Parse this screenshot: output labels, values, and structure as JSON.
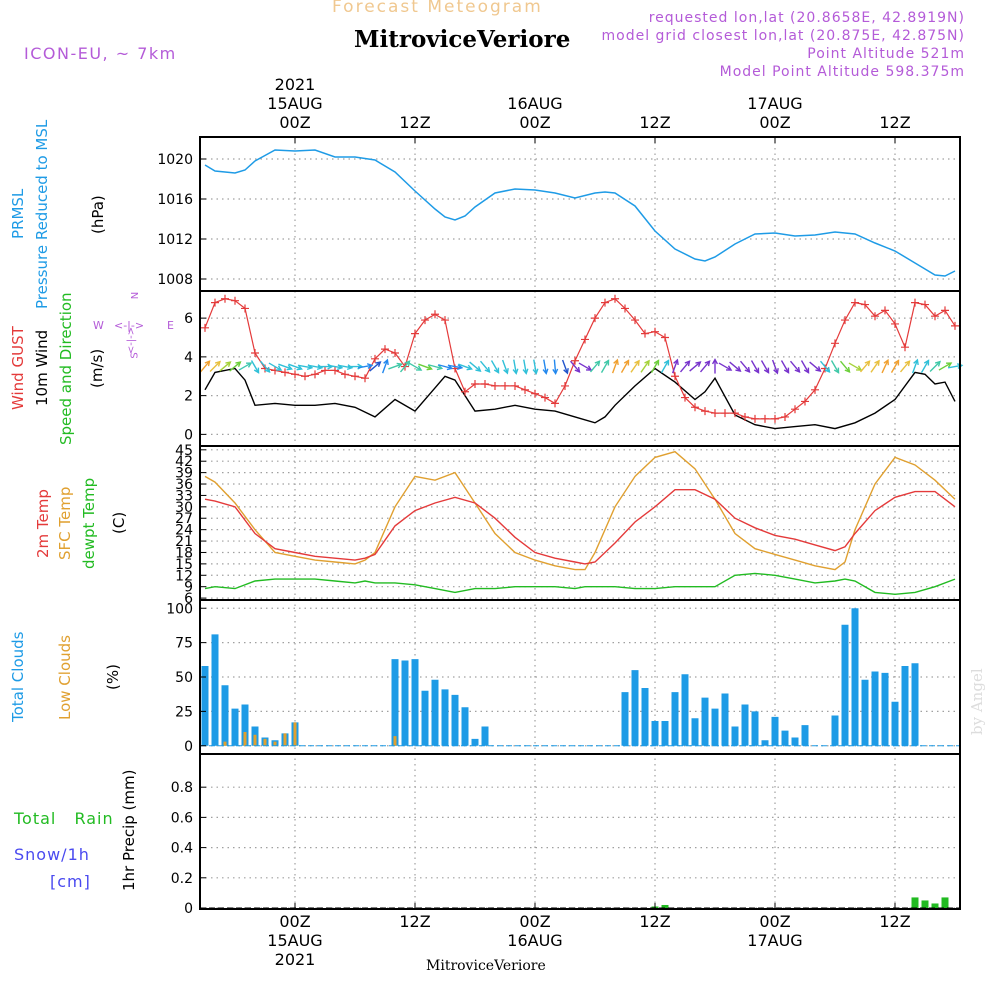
{
  "header": {
    "subtitle": "Forecast Meteogram",
    "title": "MitroviceVeriore",
    "model": "ICON-EU, ~ 7km",
    "requested": "requested lon,lat (20.8658E, 42.8919N)",
    "closest": "model grid closest lon,lat (20.875E, 42.875N)",
    "point_altitude": "Point Altitude 521m",
    "model_altitude": "Model Point Altitude 598.375m",
    "credit": "by Angel",
    "footer_station": "MitroviceVeriore"
  },
  "time_axis": {
    "year": "2021",
    "labels": [
      {
        "hour": 0,
        "time": "00Z",
        "date": "15AUG"
      },
      {
        "hour": 12,
        "time": "12Z",
        "date": ""
      },
      {
        "hour": 24,
        "time": "00Z",
        "date": "16AUG"
      },
      {
        "hour": 36,
        "time": "12Z",
        "date": ""
      },
      {
        "hour": 48,
        "time": "00Z",
        "date": "17AUG"
      },
      {
        "hour": 60,
        "time": "12Z",
        "date": ""
      }
    ]
  },
  "panels": {
    "pressure": {
      "labels": [
        {
          "text": "PRMSL",
          "color": "#1e9be6"
        },
        {
          "text": "Pressure Reduced to MSL",
          "color": "#1e9be6"
        },
        {
          "text": "(hPa)",
          "color": "#000000"
        }
      ],
      "ticks": [
        "1008",
        "1012",
        "1016",
        "1020"
      ]
    },
    "wind": {
      "labels": [
        {
          "text": "Wind GUST",
          "color": "#e43a3a"
        },
        {
          "text": "10m Wind",
          "color": "#000000"
        },
        {
          "text": "Speed and Direction",
          "color": "#22bb22"
        },
        {
          "text": "(m/s)",
          "color": "#000000"
        }
      ],
      "compass": {
        "n": "N",
        "s": "S",
        "w": "W",
        "e": "E",
        "arrow_h": "<-|->",
        "color": "#b45bd8"
      },
      "ticks": [
        "0",
        "2",
        "4",
        "6"
      ]
    },
    "temperature": {
      "labels": [
        {
          "text": "2m Temp",
          "color": "#e43a3a"
        },
        {
          "text": "SFC Temp",
          "color": "#e0a030"
        },
        {
          "text": "dewpt Temp",
          "color": "#22bb22"
        },
        {
          "text": "(C)",
          "color": "#000000"
        }
      ],
      "ticks": [
        "6",
        "9",
        "12",
        "15",
        "18",
        "21",
        "24",
        "27",
        "30",
        "33",
        "36",
        "39",
        "42",
        "45"
      ]
    },
    "clouds": {
      "labels": [
        {
          "text": "Total Clouds",
          "color": "#1e9be6"
        },
        {
          "text": "Low Clouds",
          "color": "#e0a030"
        },
        {
          "text": "(%)",
          "color": "#000000"
        }
      ],
      "ticks": [
        "0",
        "25",
        "50",
        "75",
        "100"
      ]
    },
    "precip": {
      "labels": [
        {
          "text": "1hr Precip (mm)",
          "color": "#000000"
        }
      ],
      "legend": {
        "rain": "Total Rain",
        "snow": "Snow/1h",
        "unit": "[cm]"
      },
      "ticks": [
        "0",
        "0.2",
        "0.4",
        "0.6",
        "0.8"
      ]
    }
  },
  "chart_data": {
    "type": "line",
    "x_unit": "hours from 2021-08-15 00Z",
    "x_range": [
      -9.5,
      66.5
    ],
    "pressure": {
      "ylim": [
        1006.8,
        1022.2
      ],
      "x": [
        -9,
        -8,
        -6,
        -5,
        -4,
        -2,
        0,
        2,
        4,
        6,
        8,
        10,
        12,
        14,
        15,
        16,
        17,
        18,
        20,
        22,
        24,
        26,
        28,
        30,
        31,
        32,
        34,
        36,
        38,
        40,
        41,
        42,
        44,
        46,
        48,
        50,
        52,
        54,
        56,
        58,
        60,
        62,
        63,
        64,
        65,
        66
      ],
      "values": [
        1019.4,
        1018.8,
        1018.6,
        1018.9,
        1019.8,
        1020.9,
        1020.8,
        1020.9,
        1020.2,
        1020.2,
        1019.9,
        1018.7,
        1016.8,
        1015.0,
        1014.2,
        1013.9,
        1014.3,
        1015.2,
        1016.6,
        1017.0,
        1016.9,
        1016.6,
        1016.1,
        1016.6,
        1016.7,
        1016.6,
        1015.3,
        1012.8,
        1011.0,
        1010.0,
        1009.8,
        1010.2,
        1011.5,
        1012.5,
        1012.6,
        1012.3,
        1012.4,
        1012.7,
        1012.5,
        1011.6,
        1010.8,
        1009.6,
        1009.0,
        1008.4,
        1008.3,
        1008.8
      ]
    },
    "wind_gust": {
      "ylim": [
        -0.6,
        7.4
      ],
      "x": [
        -9,
        -8,
        -7,
        -6,
        -5,
        -4,
        -3,
        -2,
        -1,
        0,
        1,
        2,
        3,
        4,
        5,
        6,
        7,
        8,
        9,
        10,
        11,
        12,
        13,
        14,
        15,
        16,
        17,
        18,
        19,
        20,
        21,
        22,
        23,
        24,
        25,
        26,
        27,
        28,
        29,
        30,
        31,
        32,
        33,
        34,
        35,
        36,
        37,
        38,
        39,
        40,
        41,
        42,
        43,
        44,
        45,
        46,
        47,
        48,
        49,
        50,
        51,
        52,
        53,
        54,
        55,
        56,
        57,
        58,
        59,
        60,
        61,
        62,
        63,
        64,
        65,
        66
      ],
      "values": [
        5.5,
        6.8,
        7.0,
        6.9,
        6.5,
        4.2,
        3.4,
        3.3,
        3.2,
        3.1,
        3.0,
        3.1,
        3.3,
        3.3,
        3.1,
        3.0,
        2.9,
        3.9,
        4.4,
        4.2,
        3.5,
        5.2,
        5.9,
        6.2,
        5.9,
        3.4,
        2.2,
        2.6,
        2.6,
        2.5,
        2.5,
        2.5,
        2.3,
        2.1,
        1.9,
        1.6,
        2.5,
        3.8,
        4.9,
        6.0,
        6.8,
        7.0,
        6.5,
        5.9,
        5.2,
        5.3,
        5.0,
        3.0,
        1.9,
        1.4,
        1.2,
        1.1,
        1.1,
        1.1,
        0.9,
        0.8,
        0.8,
        0.8,
        0.9,
        1.3,
        1.7,
        2.3,
        3.4,
        4.7,
        5.9,
        6.8,
        6.7,
        6.1,
        6.4,
        5.7,
        4.5,
        6.8,
        6.7,
        6.1,
        6.4,
        5.6
      ]
    },
    "wind_10m": {
      "x": [
        -9,
        -8,
        -6,
        -5,
        -4,
        -2,
        0,
        2,
        4,
        6,
        8,
        10,
        12,
        14,
        15,
        16,
        17,
        18,
        20,
        22,
        24,
        26,
        28,
        30,
        31,
        32,
        34,
        36,
        38,
        40,
        41,
        42,
        44,
        46,
        48,
        50,
        52,
        54,
        56,
        58,
        60,
        62,
        63,
        64,
        65,
        66
      ],
      "values": [
        2.3,
        3.2,
        3.4,
        2.8,
        1.5,
        1.6,
        1.5,
        1.5,
        1.6,
        1.4,
        0.9,
        1.8,
        1.2,
        2.4,
        3.0,
        2.8,
        2.0,
        1.2,
        1.3,
        1.5,
        1.3,
        1.2,
        0.9,
        0.6,
        0.9,
        1.5,
        2.5,
        3.4,
        2.7,
        1.8,
        2.2,
        2.9,
        1.0,
        0.5,
        0.3,
        0.4,
        0.5,
        0.3,
        0.6,
        1.1,
        1.8,
        3.2,
        3.1,
        2.6,
        2.7,
        1.7
      ]
    },
    "wind_arrows": {
      "x": [
        -9,
        -8,
        -7,
        -6,
        -5,
        -4,
        -3,
        -2,
        -1,
        0,
        1,
        2,
        3,
        4,
        5,
        6,
        7,
        8,
        9,
        10,
        11,
        12,
        13,
        14,
        15,
        16,
        17,
        18,
        19,
        20,
        21,
        22,
        23,
        24,
        25,
        26,
        27,
        28,
        29,
        30,
        31,
        32,
        33,
        34,
        35,
        36,
        37,
        38,
        39,
        40,
        41,
        42,
        43,
        44,
        45,
        46,
        47,
        48,
        49,
        50,
        51,
        52,
        53,
        54,
        55,
        56,
        57,
        58,
        59,
        60,
        61,
        62,
        63,
        64,
        65,
        66
      ],
      "direction_deg": [
        220,
        225,
        230,
        230,
        240,
        330,
        320,
        300,
        290,
        290,
        280,
        280,
        270,
        280,
        280,
        270,
        260,
        230,
        200,
        250,
        220,
        300,
        290,
        285,
        285,
        280,
        290,
        310,
        320,
        330,
        340,
        350,
        350,
        350,
        350,
        355,
        340,
        320,
        300,
        220,
        210,
        200,
        210,
        215,
        215,
        210,
        210,
        200,
        220,
        230,
        220,
        180,
        300,
        310,
        320,
        330,
        330,
        340,
        330,
        320,
        330,
        310,
        320,
        330,
        320,
        300,
        220,
        215,
        205,
        210,
        220,
        200,
        210,
        225,
        240,
        260
      ],
      "colors": [
        "#f0a030",
        "#e8c040",
        "#a6d23a",
        "#6ccf3a",
        "#40c8b0",
        "#30c0d8",
        "#30c0d8",
        "#30c0d8",
        "#30c0d8",
        "#30c0d8",
        "#30c0d8",
        "#30c0d8",
        "#30c0d8",
        "#30c0d8",
        "#30c0d8",
        "#30c0d8",
        "#2288ee",
        "#2255cc",
        "#2288ee",
        "#40c8a8",
        "#40c8a8",
        "#40c8a8",
        "#6ccf3a",
        "#40c8a8",
        "#2288ee",
        "#2288ee",
        "#30c0d8",
        "#30c0d8",
        "#30c0d8",
        "#30c0d8",
        "#30c0d8",
        "#30c0d8",
        "#30c0d8",
        "#30c0d8",
        "#2288ee",
        "#2288ee",
        "#2255cc",
        "#7733cc",
        "#7733cc",
        "#40c8a8",
        "#40c8a8",
        "#f0a030",
        "#f0a030",
        "#e8c040",
        "#a6d23a",
        "#6ccf3a",
        "#30c0d8",
        "#7733cc",
        "#7733cc",
        "#7733cc",
        "#7733cc",
        "#7733cc",
        "#7733cc",
        "#7733cc",
        "#7733cc",
        "#7733cc",
        "#7733cc",
        "#7733cc",
        "#7733cc",
        "#7733cc",
        "#7733cc",
        "#7733cc",
        "#30c0d8",
        "#40c8a8",
        "#6ccf3a",
        "#a6d23a",
        "#e8c040",
        "#e8c040",
        "#f0a030",
        "#f0a030",
        "#e8c040",
        "#30c0d8",
        "#30c0d8",
        "#40c8a8",
        "#6ccf3a",
        "#30c0d8"
      ]
    },
    "temperature": {
      "ylim": [
        5.5,
        46
      ],
      "x": [
        -9,
        -8,
        -6,
        -4,
        -2,
        0,
        2,
        4,
        6,
        7,
        8,
        10,
        12,
        14,
        16,
        18,
        20,
        22,
        24,
        26,
        28,
        29,
        30,
        32,
        34,
        36,
        38,
        40,
        42,
        44,
        46,
        48,
        50,
        52,
        54,
        55,
        56,
        58,
        60,
        62,
        64,
        66
      ],
      "t2m": [
        32,
        31.5,
        30,
        23,
        19,
        18,
        17,
        16.5,
        16,
        16.5,
        17.5,
        25,
        29,
        31,
        32.5,
        31,
        27,
        22,
        18,
        16.5,
        15.5,
        15,
        15.5,
        20.5,
        26,
        30,
        34.5,
        34.5,
        32,
        27,
        24.5,
        22.5,
        21.5,
        20,
        18.5,
        19.5,
        23,
        29,
        32.5,
        34,
        34,
        30
      ],
      "sfc": [
        38,
        36.5,
        31,
        24,
        18,
        17,
        16,
        15.5,
        15,
        16,
        18,
        30,
        38,
        37,
        39,
        31,
        23,
        18,
        16,
        14.5,
        13.5,
        13.5,
        18,
        30,
        38,
        43,
        44.5,
        40,
        32,
        23,
        19,
        17.5,
        16,
        14.5,
        13.5,
        15.5,
        24,
        36,
        43,
        41,
        37,
        32
      ],
      "dewpt": [
        8.5,
        9,
        8.5,
        10.5,
        11,
        11,
        11,
        10.5,
        10,
        10.5,
        10,
        10,
        9.5,
        8.5,
        7.5,
        8.5,
        8.5,
        9,
        9,
        9,
        8.5,
        9,
        9,
        9,
        8.5,
        8.5,
        9,
        9,
        9,
        12,
        12.5,
        12,
        11,
        10,
        10.5,
        11,
        10.5,
        7.5,
        7,
        7.5,
        9,
        11
      ]
    },
    "clouds": {
      "ylim": [
        -6,
        106
      ],
      "x": [
        -9,
        -8,
        -7,
        -6,
        -5,
        -4,
        -3,
        -2,
        -1,
        0,
        1,
        2,
        3,
        4,
        5,
        6,
        7,
        8,
        9,
        10,
        11,
        12,
        13,
        14,
        15,
        16,
        17,
        18,
        19,
        20,
        21,
        22,
        23,
        24,
        25,
        26,
        27,
        28,
        29,
        30,
        31,
        32,
        33,
        34,
        35,
        36,
        37,
        38,
        39,
        40,
        41,
        42,
        43,
        44,
        45,
        46,
        47,
        48,
        49,
        50,
        51,
        52,
        53,
        54,
        55,
        56,
        57,
        58,
        59,
        60,
        61,
        62,
        63,
        64,
        65,
        66
      ],
      "total": [
        58,
        81,
        44,
        27,
        30,
        14,
        6,
        4,
        9,
        17,
        0,
        0,
        0,
        0,
        0,
        0,
        0,
        0,
        0,
        63,
        62,
        63,
        40,
        48,
        41,
        37,
        28,
        5,
        14,
        0,
        0,
        0,
        0,
        0,
        0,
        0,
        0,
        0,
        0,
        0,
        0,
        0,
        39,
        55,
        42,
        18,
        18,
        39,
        52,
        20,
        35,
        27,
        38,
        14,
        30,
        25,
        4,
        21,
        11,
        6,
        15,
        0,
        0,
        22,
        88,
        100,
        48,
        54,
        53,
        32,
        58,
        60,
        0,
        0,
        0,
        0
      ],
      "low": [
        0,
        0,
        3,
        0,
        10,
        8,
        5,
        3,
        9,
        17,
        0,
        0,
        0,
        0,
        0,
        0,
        0,
        0,
        0,
        7,
        0,
        0,
        0,
        0,
        0,
        0,
        0,
        0,
        0,
        0,
        0,
        0,
        0,
        0,
        0,
        0,
        0,
        0,
        0,
        0,
        0,
        0,
        0,
        0,
        0,
        0,
        0,
        0,
        0,
        0,
        0,
        0,
        0,
        0,
        0,
        0,
        0,
        0,
        0,
        0,
        0,
        0,
        0,
        0,
        0,
        0,
        0,
        0,
        0,
        0,
        0,
        0,
        0,
        0,
        0,
        0
      ]
    },
    "precip": {
      "ylim": [
        0,
        0.98
      ],
      "x": [
        36,
        37,
        62,
        63,
        64,
        65
      ],
      "rain": [
        0.01,
        0.02,
        0.07,
        0.05,
        0.03,
        0.07
      ]
    }
  }
}
